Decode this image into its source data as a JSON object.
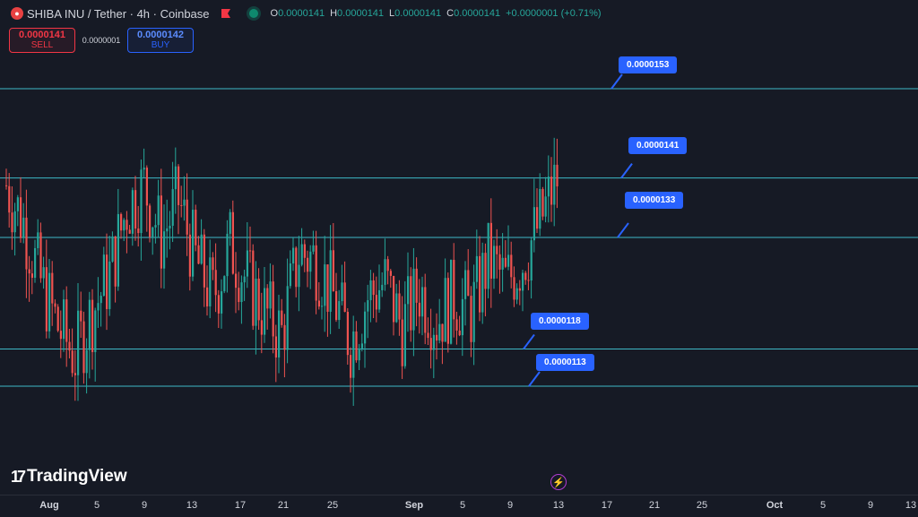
{
  "header": {
    "symbol_icon": "shiba-inu-coin-icon",
    "title": "SHIBA INU / Tether · 4h · Coinbase",
    "ohlc": [
      {
        "k": "O",
        "v": "0.0000141"
      },
      {
        "k": "H",
        "v": "0.0000141"
      },
      {
        "k": "L",
        "v": "0.0000141"
      },
      {
        "k": "C",
        "v": "0.0000141"
      },
      {
        "k": "",
        "v": "+0.0000001 (+0.71%)"
      }
    ]
  },
  "trade": {
    "sell_price": "0.0000141",
    "sell_label": "SELL",
    "spread": "0.0000001",
    "buy_price": "0.0000142",
    "buy_label": "BUY"
  },
  "levels": [
    {
      "value": "0.0000153"
    },
    {
      "value": "0.0000141"
    },
    {
      "value": "0.0000133"
    },
    {
      "value": "0.0000118"
    },
    {
      "value": "0.0000113"
    }
  ],
  "logo": "TradingView",
  "time_axis": [
    "Aug",
    "5",
    "9",
    "13",
    "17",
    "21",
    "25",
    "Sep",
    "5",
    "9",
    "13",
    "17",
    "21",
    "25",
    "Oct",
    "5",
    "9",
    "13"
  ],
  "colors": {
    "background": "#161a25",
    "up": "#26a69a",
    "down": "#ef5350",
    "level_line": "#3eb8c6",
    "label": "#2962ff"
  },
  "chart_data": {
    "type": "candlestick",
    "title": "SHIBA INU / Tether · 4h · Coinbase",
    "ylim": [
      9.5e-06,
      1.7e-05
    ],
    "horizontal_levels": [
      1.53e-05,
      1.41e-05,
      1.33e-05,
      1.18e-05,
      1.13e-05
    ],
    "x_ticks": [
      "Aug",
      "5",
      "9",
      "13",
      "17",
      "21",
      "25",
      "Sep",
      "5",
      "9",
      "13",
      "17",
      "21",
      "25",
      "Oct",
      "5",
      "9",
      "13"
    ],
    "approx_close_path": [
      1.4e-05,
      1.35e-05,
      1.27e-05,
      1.21e-05,
      1.17e-05,
      1.23e-05,
      1.28e-05,
      1.37e-05,
      1.4e-05,
      1.33e-05,
      1.38e-05,
      1.3e-05,
      1.25e-05,
      1.32e-05,
      1.27e-05,
      1.23e-05,
      1.2e-05,
      1.31e-05,
      1.3e-05,
      1.25e-05,
      1.19e-05,
      1.25e-05,
      1.27e-05,
      1.21e-05,
      1.26e-05,
      1.22e-05,
      1.25e-05,
      1.23e-05,
      1.3e-05,
      1.27e-05,
      1.3e-05,
      1.35e-05,
      1.41e-05
    ]
  }
}
